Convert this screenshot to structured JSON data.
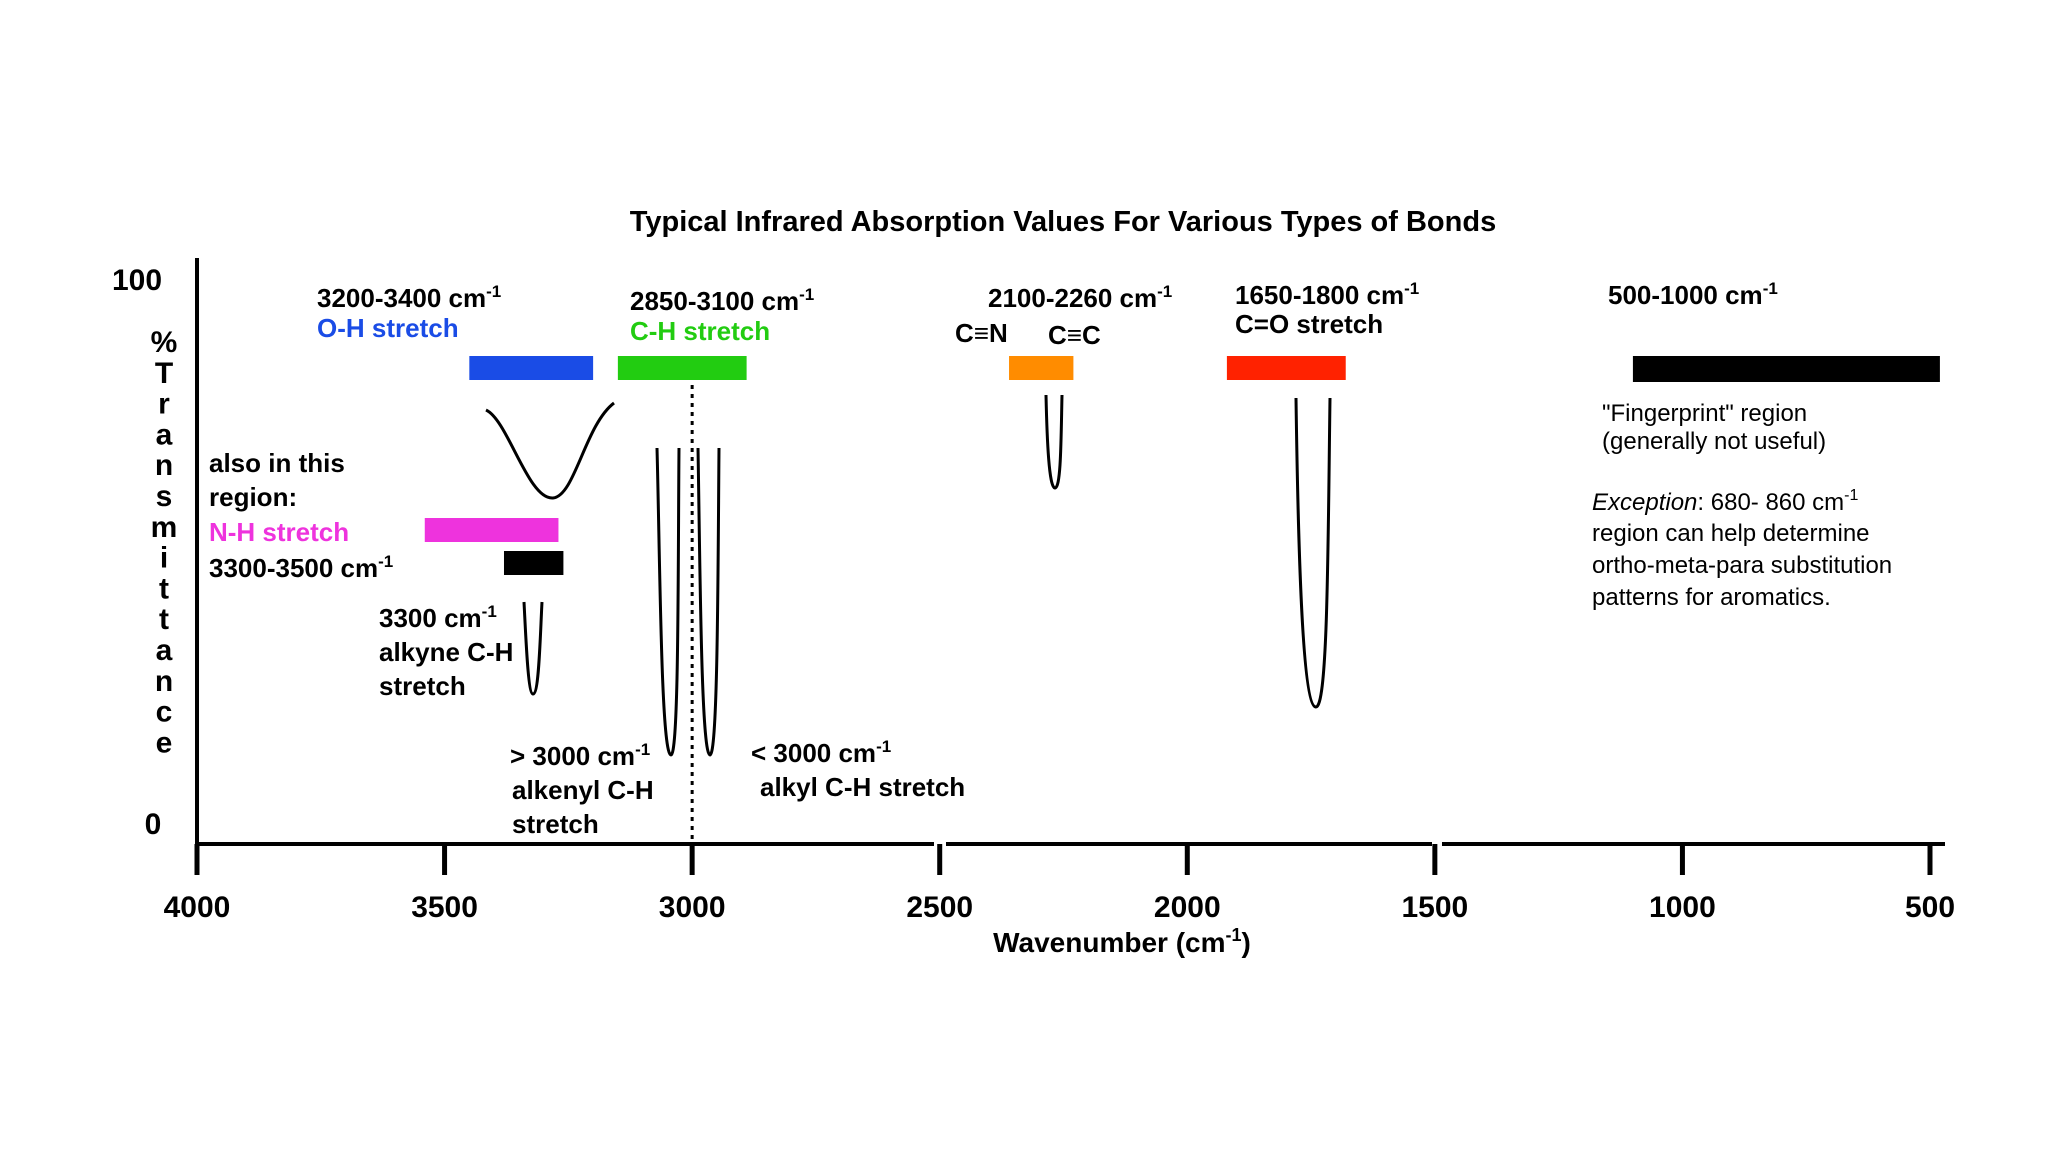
{
  "chart_data": {
    "type": "bar",
    "title": "Typical Infrared Absorption Values For Various Types of Bonds",
    "xlabel": "Wavenumber (cm",
    "xlabel_sup": "-1",
    "xlabel_end": ")",
    "ylabel": "%Transmittance",
    "ylabel_letters": [
      "%",
      "T",
      "r",
      "a",
      "n",
      "s",
      "m",
      "i",
      "t",
      "t",
      "a",
      "n",
      "c",
      "e"
    ],
    "xlim": [
      4000,
      500
    ],
    "ylim": [
      0,
      100
    ],
    "x_ticks": [
      4000,
      3500,
      3000,
      2500,
      2000,
      1500,
      1000,
      500
    ],
    "y_tick_labels": [
      "100",
      "0"
    ],
    "dotted_line_x": 3000,
    "bands": [
      {
        "name": "O-H stretch",
        "from": 3450,
        "to": 3200,
        "color": "#1a4ce6"
      },
      {
        "name": "C-H stretch",
        "from": 3150,
        "to": 2890,
        "color": "#22cc11"
      },
      {
        "name": "N-H stretch",
        "from": 3540,
        "to": 3270,
        "color": "#ee33dd"
      },
      {
        "name": "alkyne C-H stretch",
        "from": 3380,
        "to": 3260,
        "color": "#000000"
      },
      {
        "name": "C≡N C≡C",
        "from": 2360,
        "to": 2230,
        "color": "#ff8c00"
      },
      {
        "name": "C=O stretch",
        "from": 1920,
        "to": 1680,
        "color": "#ff2200"
      },
      {
        "name": "Fingerprint",
        "from": 1100,
        "to": 480,
        "color": "#000000"
      }
    ],
    "labels": {
      "oh_range": "3200-3400 cm",
      "oh_name": "O-H stretch",
      "ch_range": "2850-3100 cm",
      "ch_name": "C-H stretch",
      "triple_range": "2100-2260 cm",
      "cn": "C≡N",
      "cc": "C≡C",
      "co_range": "1650-1800 cm",
      "co_name": "C=O stretch",
      "fp_range": "500-1000 cm",
      "fp_line1": "\"Fingerprint\" region",
      "fp_line2": "(generally not useful)",
      "exc_word": "Exception",
      "exc_rest": ": 680- 860 cm",
      "exc_line2": "region can help determine",
      "exc_line3": "ortho-meta-para substitution",
      "exc_line4": "patterns for aromatics.",
      "also1": "also in this",
      "also2": "region:",
      "nh_name": "N-H stretch",
      "nh_range": "3300-3500 cm",
      "alkyne1": "3300 cm",
      "alkyne2": "alkyne C-H",
      "alkyne3": "stretch",
      "alkenyl1": "> 3000 cm",
      "alkenyl2": "alkenyl C-H",
      "alkenyl3": "stretch",
      "alkyl1": "< 3000 cm",
      "alkyl2": "alkyl C-H stretch",
      "sup": "-1"
    }
  }
}
